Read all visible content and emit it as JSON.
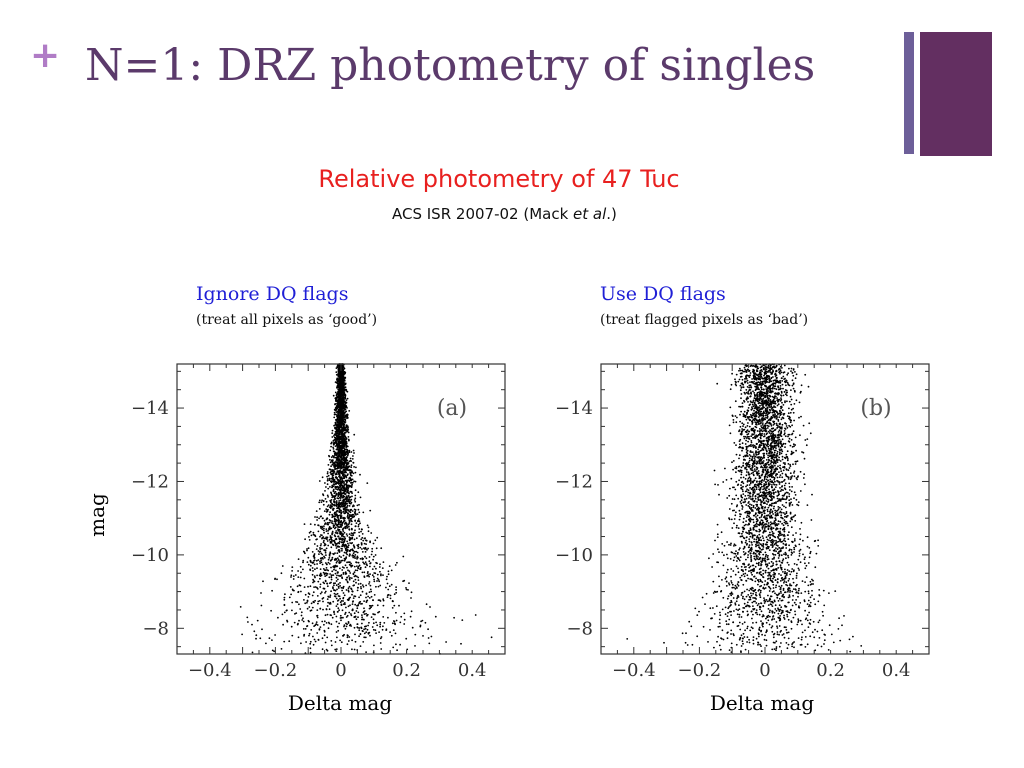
{
  "slide": {
    "bullet": "+",
    "title": "N=1:  DRZ photometry of singles",
    "subtitle": "Relative photometry of 47 Tuc",
    "citation_prefix": "ACS ISR 2007-02 (Mack ",
    "citation_italic": "et al",
    "citation_suffix": ".)",
    "accent_colors": {
      "title": "#5b3a6b",
      "bullet": "#b07cc6",
      "subtitle": "#e8201f",
      "panel_title": "#1f1fd6",
      "bar_thin": "#6d5f99",
      "bar_thick": "#632f61"
    }
  },
  "panels": [
    {
      "heading": "Ignore DQ flags",
      "note": "(treat all pixels as ‘good’)"
    },
    {
      "heading": "Use DQ flags",
      "note": "(treat flagged pixels as ‘bad’)"
    }
  ],
  "chart_data": [
    {
      "type": "scatter",
      "panel_label": "(a)",
      "title": "",
      "xlabel": "Delta mag",
      "ylabel": "mag",
      "xlim": [
        -0.5,
        0.5
      ],
      "ylim": [
        -15.2,
        -7.3
      ],
      "y_inverted": true,
      "xticks": [
        -0.4,
        -0.2,
        0,
        0.2,
        0.4
      ],
      "xtick_labels": [
        "−0.4",
        "−0.2",
        "0",
        "0.2",
        "0.4"
      ],
      "yticks": [
        -14,
        -12,
        -10,
        -8
      ],
      "ytick_labels": [
        "−14",
        "−12",
        "−10",
        "−8"
      ],
      "marker_color": "#000000",
      "spread_description_points": [
        {
          "mag": -15.0,
          "delta_sd": 0.005
        },
        {
          "mag": -13.0,
          "delta_sd": 0.012
        },
        {
          "mag": -11.0,
          "delta_sd": 0.03
        },
        {
          "mag": -9.0,
          "delta_sd": 0.09
        },
        {
          "mag": -7.5,
          "delta_sd": 0.15
        }
      ]
    },
    {
      "type": "scatter",
      "panel_label": "(b)",
      "title": "",
      "xlabel": "Delta mag",
      "ylabel": "",
      "xlim": [
        -0.5,
        0.5
      ],
      "ylim": [
        -15.2,
        -7.3
      ],
      "y_inverted": true,
      "xticks": [
        -0.4,
        -0.2,
        0,
        0.2,
        0.4
      ],
      "xtick_labels": [
        "−0.4",
        "−0.2",
        "0",
        "0.2",
        "0.4"
      ],
      "yticks": [
        -14,
        -12,
        -10,
        -8
      ],
      "ytick_labels": [
        "−14",
        "−12",
        "−10",
        "−8"
      ],
      "marker_color": "#000000",
      "spread_description_points": [
        {
          "mag": -14.5,
          "delta_sd": 0.04
        },
        {
          "mag": -13.0,
          "delta_sd": 0.045
        },
        {
          "mag": -11.0,
          "delta_sd": 0.05
        },
        {
          "mag": -9.0,
          "delta_sd": 0.08
        },
        {
          "mag": -7.5,
          "delta_sd": 0.12
        }
      ]
    }
  ]
}
